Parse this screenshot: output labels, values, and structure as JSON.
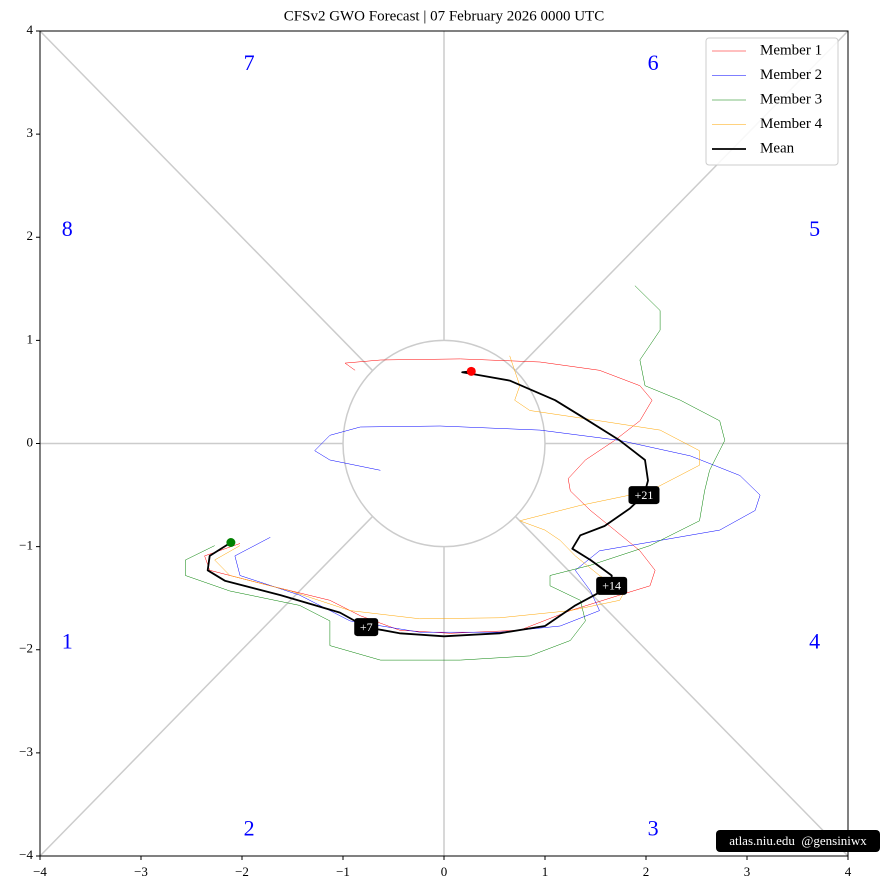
{
  "chart_data": {
    "type": "line",
    "title": "CFSv2 GWO Forecast   |   07  February  2026 0000 UTC",
    "xlim": [
      -4,
      4
    ],
    "ylim": [
      -4,
      4
    ],
    "xticks": [
      {
        "value": -4,
        "label": "−4"
      },
      {
        "value": -3,
        "label": "−3"
      },
      {
        "value": -2,
        "label": "−2"
      },
      {
        "value": -1,
        "label": "−1"
      },
      0,
      1,
      2,
      3,
      4
    ],
    "yticks": [
      {
        "value": -4,
        "label": "−4"
      },
      {
        "value": -3,
        "label": "−3"
      },
      {
        "value": -2,
        "label": "−2"
      },
      {
        "value": -1,
        "label": "−1"
      },
      0,
      1,
      2,
      3,
      4
    ],
    "legend": "upper right",
    "phase_labels": [
      "1",
      "2",
      "3",
      "4",
      "5",
      "6",
      "7",
      "8"
    ],
    "phase_label_color": "#0000ff",
    "series": [
      {
        "name": "Member 1",
        "color": "#ff0000",
        "width": 0.5,
        "x": [
          -2.02,
          -2.37,
          -2.32,
          -1.72,
          -1.13,
          -0.83,
          -0.44,
          0.06,
          0.75,
          1.25,
          1.74,
          2.04,
          2.09,
          1.94,
          1.69,
          1.45,
          1.25,
          1.23,
          1.4,
          1.69,
          1.94,
          2.06,
          1.94,
          1.54,
          0.95,
          0.16,
          -0.63,
          -0.98,
          -0.88
        ],
        "values": [
          -0.97,
          -1.09,
          -1.23,
          -1.38,
          -1.52,
          -1.67,
          -1.81,
          -1.84,
          -1.81,
          -1.62,
          -1.47,
          -1.38,
          -1.23,
          -1.04,
          -0.84,
          -0.65,
          -0.46,
          -0.34,
          -0.16,
          0.03,
          0.22,
          0.42,
          0.56,
          0.71,
          0.79,
          0.82,
          0.81,
          0.78,
          0.71
        ]
      },
      {
        "name": "Member 2",
        "color": "#0000ff",
        "width": 0.5,
        "x": [
          -1.72,
          -2.07,
          -2.02,
          -1.43,
          -0.93,
          -0.24,
          0.55,
          1.15,
          1.54,
          1.45,
          1.3,
          1.54,
          2.14,
          2.73,
          3.08,
          3.13,
          2.93,
          2.44,
          1.74,
          0.95,
          -0.04,
          -0.83,
          -1.13,
          -1.28,
          -1.13,
          -0.63
        ],
        "values": [
          -0.91,
          -1.09,
          -1.28,
          -1.47,
          -1.72,
          -1.83,
          -1.83,
          -1.77,
          -1.62,
          -1.43,
          -1.23,
          -1.04,
          -0.94,
          -0.84,
          -0.65,
          -0.5,
          -0.31,
          -0.12,
          0.03,
          0.13,
          0.17,
          0.16,
          0.08,
          -0.07,
          -0.16,
          -0.26
        ]
      },
      {
        "name": "Member 3",
        "color": "#008000",
        "width": 0.5,
        "x": [
          -2.27,
          -2.56,
          -2.56,
          -2.12,
          -1.43,
          -1.13,
          -1.13,
          -0.63,
          0.16,
          0.85,
          1.25,
          1.4,
          1.35,
          1.05,
          1.05,
          1.45,
          2.04,
          2.53,
          2.58,
          2.63,
          2.78,
          2.73,
          2.34,
          1.99,
          1.94,
          2.14,
          2.14,
          1.89
        ],
        "values": [
          -0.99,
          -1.13,
          -1.28,
          -1.43,
          -1.57,
          -1.72,
          -1.96,
          -2.1,
          -2.1,
          -2.06,
          -1.91,
          -1.72,
          -1.52,
          -1.38,
          -1.28,
          -1.18,
          -0.99,
          -0.75,
          -0.46,
          -0.26,
          0.03,
          0.22,
          0.42,
          0.56,
          0.81,
          1.1,
          1.29,
          1.53
        ]
      },
      {
        "name": "Member 4",
        "color": "#ffa500",
        "width": 0.5,
        "x": [
          -2.02,
          -2.27,
          -2.12,
          -1.52,
          -0.93,
          -0.24,
          0.55,
          1.25,
          1.74,
          1.79,
          1.54,
          1.3,
          1.15,
          1.0,
          0.75,
          1.35,
          2.04,
          2.53,
          2.53,
          2.14,
          1.54,
          0.85,
          0.7,
          0.75,
          0.65
        ],
        "values": [
          -0.99,
          -1.13,
          -1.28,
          -1.43,
          -1.62,
          -1.7,
          -1.69,
          -1.62,
          -1.52,
          -1.43,
          -1.28,
          -1.09,
          -0.94,
          -0.84,
          -0.75,
          -0.6,
          -0.46,
          -0.21,
          -0.07,
          0.13,
          0.22,
          0.32,
          0.42,
          0.56,
          0.85
        ]
      },
      {
        "name": "Mean",
        "color": "#000000",
        "width": 1.8,
        "x": [
          -2.11,
          -2.32,
          -2.34,
          -2.17,
          -1.62,
          -1.03,
          -0.77,
          -0.44,
          0,
          0.55,
          1.0,
          1.3,
          1.66,
          1.66,
          1.45,
          1.27,
          1.35,
          1.59,
          1.84,
          1.98,
          2.02,
          1.99,
          1.74,
          1.35,
          1.1,
          0.65,
          0.36,
          0.18,
          0.27
        ],
        "values": [
          -0.96,
          -1.09,
          -1.23,
          -1.33,
          -1.47,
          -1.64,
          -1.78,
          -1.84,
          -1.87,
          -1.84,
          -1.77,
          -1.57,
          -1.38,
          -1.28,
          -1.13,
          -1.02,
          -0.89,
          -0.8,
          -0.63,
          -0.5,
          -0.36,
          -0.16,
          0.03,
          0.27,
          0.42,
          0.61,
          0.66,
          0.69,
          0.7
        ]
      }
    ],
    "start_color": "#008000",
    "end_color": "#ff0000",
    "annotations": [
      {
        "text": "+7",
        "x": -0.77,
        "y": -1.78
      },
      {
        "text": "+14",
        "x": 1.66,
        "y": -1.38
      },
      {
        "text": "+21",
        "x": 1.98,
        "y": -0.5
      }
    ],
    "watermark": "atlas.niu.edu  @gensiniwx"
  }
}
